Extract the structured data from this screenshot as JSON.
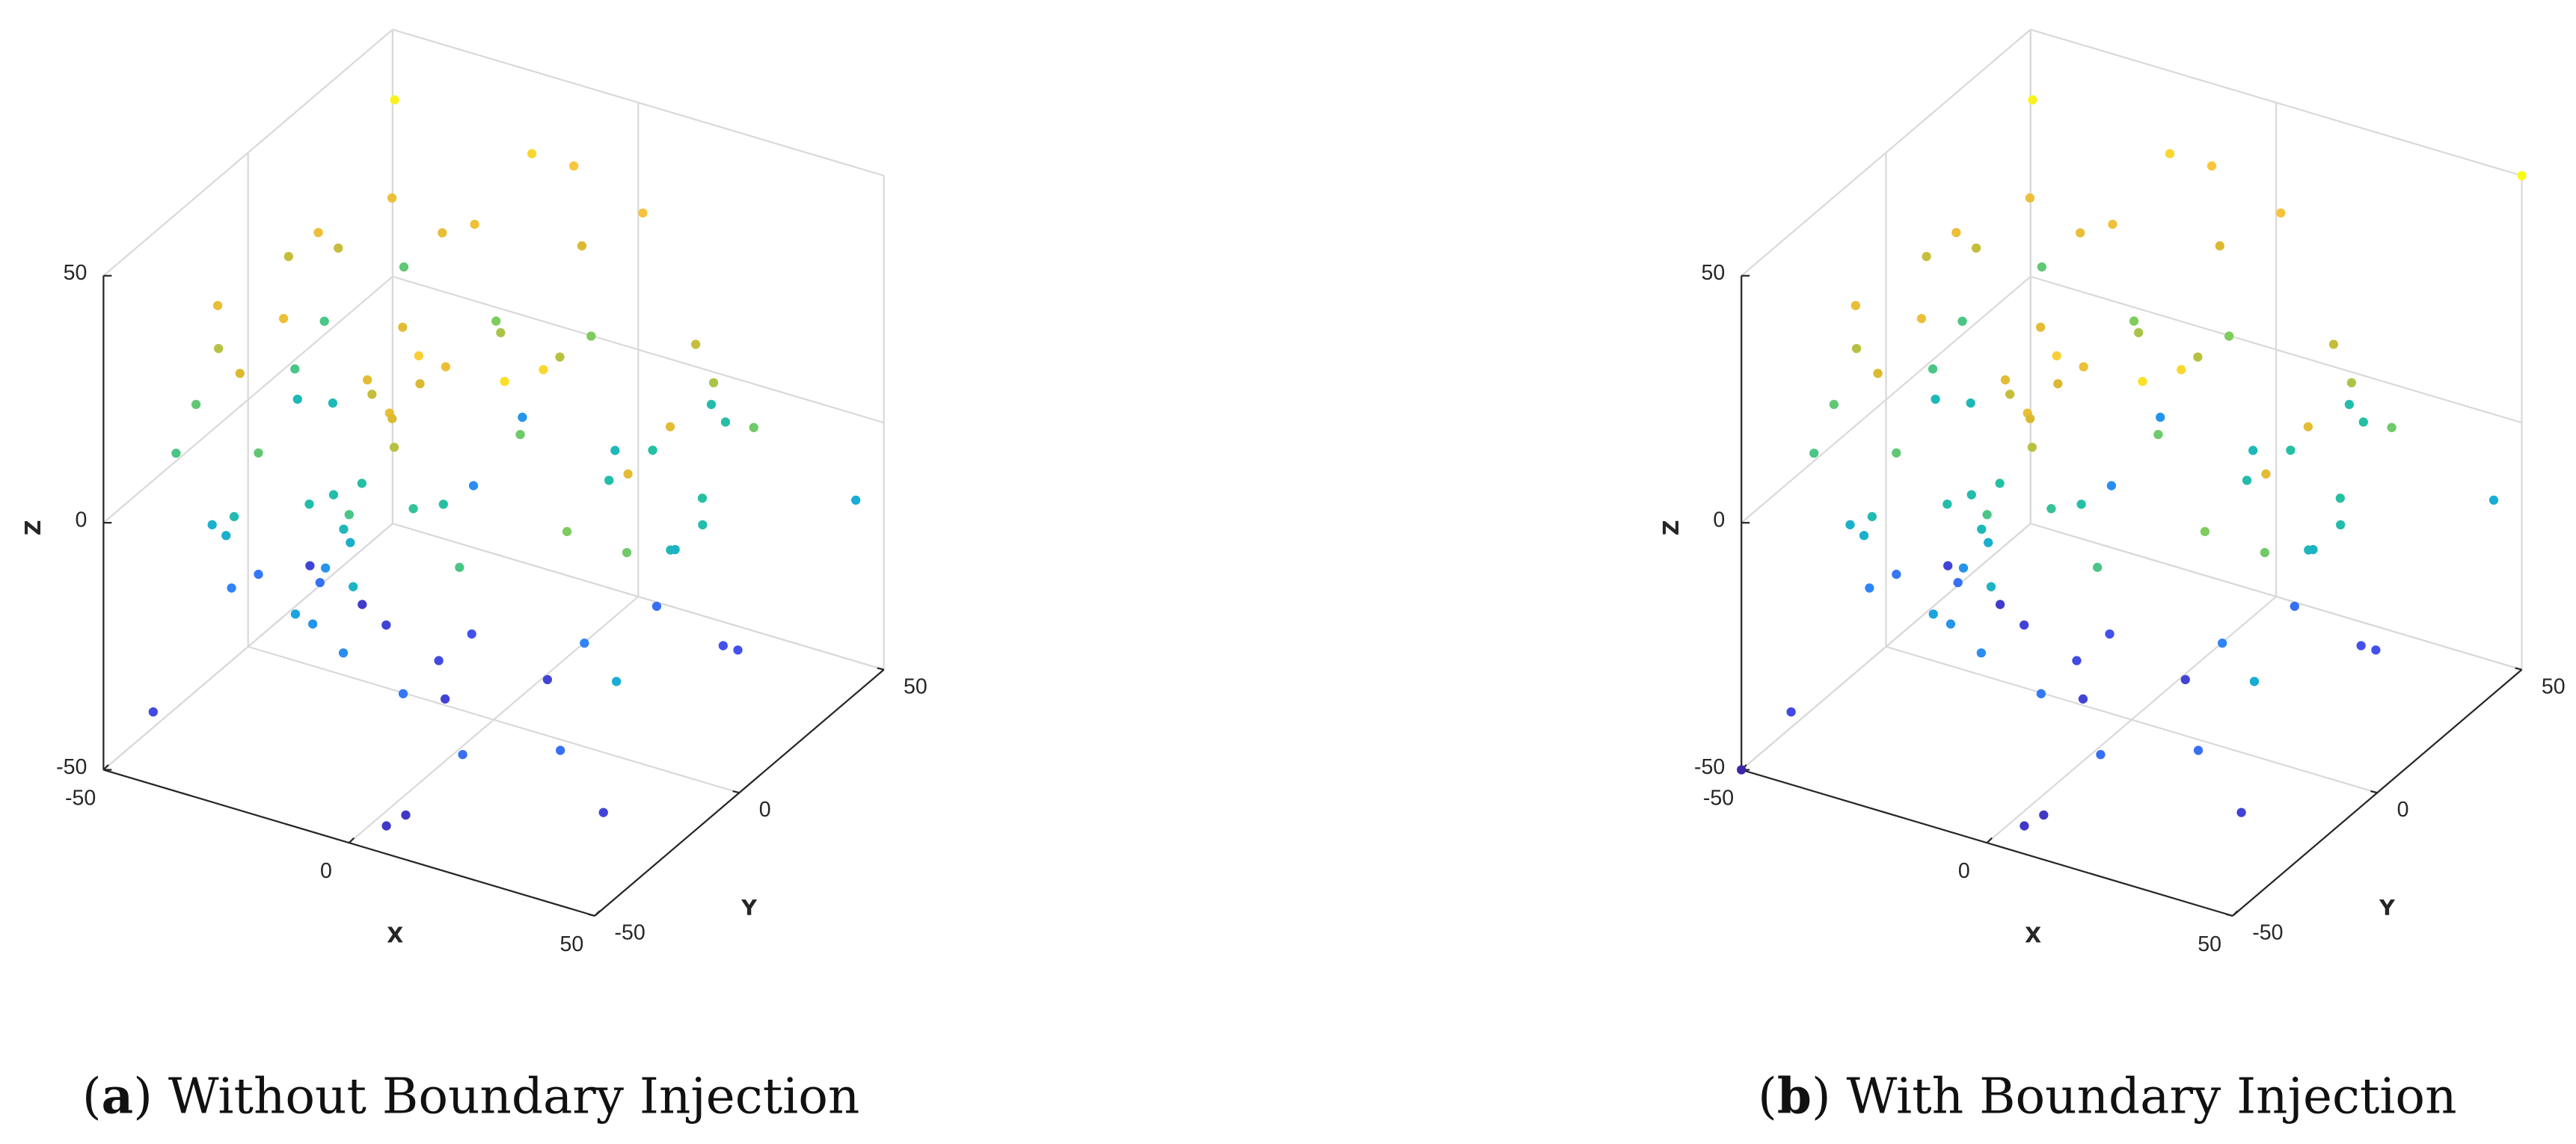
{
  "chart_data": [
    {
      "type": "scatter3d",
      "caption": [
        "(",
        "a",
        ") Without Boundary Injection"
      ],
      "xlabel": "X",
      "ylabel": "Y",
      "zlabel": "Z",
      "xlim": [
        -50,
        50
      ],
      "ylim": [
        -50,
        50
      ],
      "zlim": [
        -50,
        50
      ],
      "xticks": [
        -50,
        0,
        50
      ],
      "yticks": [
        -50,
        0,
        50
      ],
      "zticks": [
        -50,
        0,
        50
      ],
      "grid": true,
      "colormap": [
        "#3e26a8",
        "#4253f0",
        "#2f84f8",
        "#17acd8",
        "#25c0a3",
        "#81cc59",
        "#dbba31",
        "#fbc33e",
        "#f9fb15"
      ],
      "x": [
        -39,
        -14,
        -9,
        8,
        -36,
        -24,
        -18,
        -5,
        -43,
        -41,
        -44,
        -50,
        -45,
        -31,
        -46,
        -34,
        -50,
        -47,
        -48,
        -44,
        -47,
        -41,
        -32,
        -15,
        -11,
        -13,
        0,
        -3,
        -2,
        3,
        -5,
        2,
        -16,
        -8,
        24,
        26,
        7,
        1,
        -23,
        6,
        27,
        19,
        33,
        26,
        40,
        43,
        45,
        10,
        17,
        20,
        49,
        36,
        39,
        36,
        34,
        43,
        32,
        22,
        32,
        35,
        22,
        45,
        8,
        33,
        40,
        -8,
        -10,
        -4,
        1,
        19,
        8,
        7,
        -26,
        -35,
        -8,
        -10,
        -18,
        -18,
        -26,
        -48,
        -33,
        -18,
        -17,
        -22,
        -24,
        -18,
        -10,
        -4,
        -2,
        16,
        -42,
        -38,
        -34,
        -42,
        -41,
        -44,
        -20
      ],
      "y": [
        32,
        37,
        43,
        38,
        26,
        23,
        24,
        39,
        42,
        9,
        21,
        14,
        -19,
        -20,
        -17,
        -30,
        -18,
        -30,
        23,
        6,
        12,
        14,
        -27,
        -6,
        -25,
        -20,
        -36,
        -30,
        -31,
        -31,
        -17,
        -20,
        28,
        16,
        -37,
        -27,
        11,
        32,
        49,
        -1,
        24,
        43,
        20,
        36,
        22,
        -12,
        -30,
        25,
        11,
        21,
        42,
        11,
        6,
        0,
        5,
        -27,
        -29,
        19,
        25,
        25,
        -6,
        -34,
        5,
        -33,
        -30,
        6,
        -2,
        -10,
        -33,
        -43,
        -44,
        -49,
        7,
        14,
        -35,
        -35,
        -32,
        -38,
        -14,
        18,
        -4,
        -19,
        -23,
        -18,
        -23,
        -15,
        -33,
        -21,
        -14,
        -39,
        -26,
        -28,
        -32,
        -10,
        -21,
        -43,
        27
      ],
      "z": [
        48,
        42,
        38,
        36,
        32,
        30,
        33,
        25,
        8,
        32,
        22,
        22,
        30,
        32,
        20,
        25,
        8,
        5,
        5,
        5,
        -5,
        -5,
        8,
        28,
        28,
        22,
        30,
        25,
        20,
        40,
        25,
        32,
        12,
        18,
        44,
        42,
        20,
        12,
        -20,
        10,
        22,
        -2,
        18,
        0,
        10,
        28,
        28,
        -5,
        -2,
        0,
        -12,
        0,
        -2,
        -5,
        -8,
        10,
        12,
        -30,
        -38,
        -38,
        -25,
        -12,
        -42,
        -30,
        -42,
        -38,
        -40,
        -42,
        -28,
        -30,
        -45,
        -45,
        -42,
        -44,
        -8,
        -22,
        -20,
        -15,
        -20,
        -42,
        -30,
        -10,
        -5,
        -2,
        -2,
        0,
        5,
        2,
        0,
        5,
        -10,
        -10,
        -3,
        -28,
        -25,
        -40,
        -22
      ]
    },
    {
      "type": "scatter3d",
      "caption": [
        "(",
        "b",
        ") With Boundary Injection"
      ],
      "xlabel": "X",
      "ylabel": "Y",
      "zlabel": "Z",
      "xlim": [
        -50,
        50
      ],
      "ylim": [
        -50,
        50
      ],
      "zlim": [
        -50,
        50
      ],
      "xticks": [
        -50,
        0,
        50
      ],
      "yticks": [
        -50,
        0,
        50
      ],
      "zticks": [
        -50,
        0,
        50
      ],
      "grid": true,
      "colormap": [
        "#3e26a8",
        "#4253f0",
        "#2f84f8",
        "#17acd8",
        "#25c0a3",
        "#81cc59",
        "#dbba31",
        "#fbc33e",
        "#f9fb15"
      ],
      "x": [
        -39,
        -14,
        -9,
        8,
        -36,
        -24,
        -18,
        -5,
        -43,
        -41,
        -44,
        -50,
        -45,
        -31,
        -46,
        -34,
        -50,
        -47,
        -48,
        -44,
        -47,
        -41,
        -32,
        -15,
        -11,
        -13,
        0,
        -3,
        -2,
        3,
        -5,
        2,
        -16,
        -8,
        24,
        26,
        7,
        1,
        -23,
        6,
        27,
        19,
        33,
        26,
        40,
        43,
        45,
        10,
        17,
        20,
        49,
        36,
        39,
        36,
        34,
        43,
        32,
        22,
        32,
        35,
        22,
        45,
        8,
        33,
        40,
        -8,
        -10,
        -4,
        1,
        19,
        8,
        7,
        -26,
        -35,
        -8,
        -10,
        -18,
        -18,
        -26,
        -48,
        -33,
        -18,
        -17,
        -22,
        -24,
        -18,
        -10,
        -4,
        -2,
        16,
        -42,
        -38,
        -34,
        -42,
        -41,
        -44,
        -20,
        -50,
        50
      ],
      "y": [
        32,
        37,
        43,
        38,
        26,
        23,
        24,
        39,
        42,
        9,
        21,
        14,
        -19,
        -20,
        -17,
        -30,
        -18,
        -30,
        23,
        6,
        12,
        14,
        -27,
        -6,
        -25,
        -20,
        -36,
        -30,
        -31,
        -31,
        -17,
        -20,
        28,
        16,
        -37,
        -27,
        11,
        32,
        49,
        -1,
        24,
        43,
        20,
        36,
        22,
        -12,
        -30,
        25,
        11,
        21,
        42,
        11,
        6,
        0,
        5,
        -27,
        -29,
        19,
        25,
        25,
        -6,
        -34,
        5,
        -33,
        -30,
        6,
        -2,
        -10,
        -33,
        -43,
        -44,
        -49,
        7,
        14,
        -35,
        -35,
        -32,
        -38,
        -14,
        18,
        -4,
        -19,
        -23,
        -18,
        -23,
        -15,
        -33,
        -21,
        -14,
        -39,
        -26,
        -28,
        -32,
        -10,
        -21,
        -43,
        27,
        -50,
        50
      ],
      "z": [
        48,
        42,
        38,
        36,
        32,
        30,
        33,
        25,
        8,
        32,
        22,
        22,
        30,
        32,
        20,
        25,
        8,
        5,
        5,
        5,
        -5,
        -5,
        8,
        28,
        28,
        22,
        30,
        25,
        20,
        40,
        25,
        32,
        12,
        18,
        44,
        42,
        20,
        12,
        -20,
        10,
        22,
        -2,
        18,
        0,
        10,
        28,
        28,
        -5,
        -2,
        0,
        -12,
        0,
        -2,
        -5,
        -8,
        10,
        12,
        -30,
        -38,
        -38,
        -25,
        -12,
        -42,
        -30,
        -42,
        -38,
        -40,
        -42,
        -28,
        -30,
        -45,
        -45,
        -42,
        -44,
        -8,
        -22,
        -20,
        -15,
        -20,
        -42,
        -30,
        -10,
        -5,
        -2,
        -2,
        0,
        5,
        2,
        0,
        5,
        -10,
        -10,
        -3,
        -28,
        -25,
        -40,
        -22,
        -50,
        50
      ]
    }
  ]
}
